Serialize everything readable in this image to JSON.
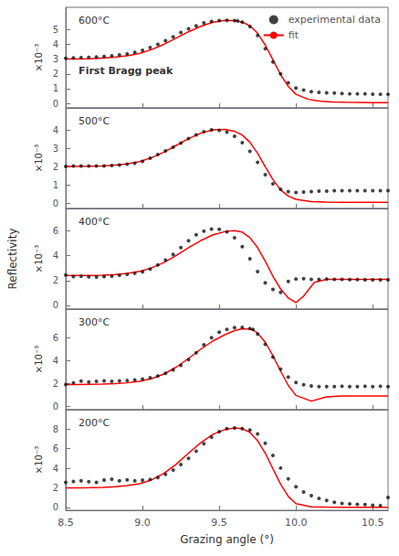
{
  "chart_data": [
    {
      "type": "scatter",
      "annotations": [
        "600°C",
        "×10⁻³",
        "First Bragg peak"
      ],
      "legend": "upper right",
      "grid": false,
      "tick_labels": "y",
      "xlim": [
        8.5,
        10.6
      ],
      "xticks": [
        8.5,
        {
          "value": 9.0,
          "label": "9.0"
        },
        9.5,
        {
          "value": 10.0,
          "label": "10.0"
        },
        10.5
      ],
      "ylim": [
        -0.3,
        6.5
      ],
      "yticks": [
        0,
        1,
        2,
        3,
        4,
        5
      ],
      "series": [
        {
          "name": "experimental data",
          "type": "scatter",
          "marker": "circle",
          "color": "#111111",
          "x": [
            8.5,
            8.55,
            8.6,
            8.65,
            8.7,
            8.75,
            8.8,
            8.85,
            8.9,
            8.95,
            9.0,
            9.05,
            9.1,
            9.15,
            9.2,
            9.25,
            9.3,
            9.35,
            9.4,
            9.45,
            9.5,
            9.55,
            9.6,
            9.62,
            9.65,
            9.7,
            9.75,
            9.8,
            9.85,
            9.9,
            9.95,
            10.0,
            10.05,
            10.1,
            10.15,
            10.2,
            10.25,
            10.3,
            10.35,
            10.4,
            10.45,
            10.5,
            10.55,
            10.6
          ],
          "values": [
            3.05,
            3.08,
            3.1,
            3.12,
            3.15,
            3.18,
            3.22,
            3.28,
            3.35,
            3.45,
            3.6,
            3.78,
            4.0,
            4.25,
            4.5,
            4.8,
            5.05,
            5.25,
            5.45,
            5.55,
            5.6,
            5.62,
            5.6,
            5.58,
            5.5,
            5.2,
            4.6,
            3.7,
            2.8,
            2.0,
            1.4,
            1.05,
            0.9,
            0.8,
            0.75,
            0.72,
            0.7,
            0.68,
            0.65,
            0.65,
            0.65,
            0.63,
            0.62,
            0.62
          ]
        },
        {
          "name": "fit",
          "type": "line",
          "line_style": "solid",
          "color": "#ff0000",
          "x": [
            8.5,
            8.58,
            8.66,
            8.74,
            8.82,
            8.9,
            8.98,
            9.06,
            9.14,
            9.22,
            9.3,
            9.38,
            9.46,
            9.54,
            9.6,
            9.65,
            9.7,
            9.75,
            9.8,
            9.85,
            9.9,
            9.95,
            10.0,
            10.08,
            10.16,
            10.24,
            10.32,
            10.4,
            10.5,
            10.6
          ],
          "values": [
            3.0,
            3.01,
            3.03,
            3.07,
            3.13,
            3.22,
            3.38,
            3.65,
            4.0,
            4.42,
            4.85,
            5.22,
            5.5,
            5.62,
            5.6,
            5.5,
            5.25,
            4.75,
            3.95,
            2.95,
            1.95,
            1.15,
            0.62,
            0.28,
            0.15,
            0.1,
            0.08,
            0.07,
            0.06,
            0.06
          ]
        }
      ]
    },
    {
      "type": "scatter",
      "annotations": [
        "500°C",
        "×10⁻³"
      ],
      "grid": false,
      "tick_labels": "y",
      "xlim": [
        8.5,
        10.6
      ],
      "xticks": [
        8.5,
        {
          "value": 9.0,
          "label": "9.0"
        },
        9.5,
        {
          "value": 10.0,
          "label": "10.0"
        },
        10.5
      ],
      "ylim": [
        -0.3,
        5.2
      ],
      "yticks": [
        0,
        1,
        2,
        3,
        4
      ],
      "series": [
        {
          "name": "experimental data",
          "type": "scatter",
          "marker": "circle",
          "color": "#111111",
          "x": [
            8.5,
            8.55,
            8.6,
            8.65,
            8.7,
            8.75,
            8.8,
            8.85,
            8.9,
            8.95,
            9.0,
            9.05,
            9.1,
            9.15,
            9.2,
            9.25,
            9.3,
            9.35,
            9.4,
            9.45,
            9.5,
            9.55,
            9.6,
            9.65,
            9.7,
            9.75,
            9.8,
            9.85,
            9.9,
            9.95,
            10.0,
            10.05,
            10.1,
            10.15,
            10.2,
            10.25,
            10.3,
            10.35,
            10.4,
            10.45,
            10.5,
            10.55,
            10.6
          ],
          "values": [
            2.0,
            2.02,
            2.03,
            2.03,
            2.02,
            2.03,
            2.05,
            2.08,
            2.12,
            2.18,
            2.28,
            2.45,
            2.65,
            2.85,
            3.05,
            3.28,
            3.52,
            3.72,
            3.9,
            4.0,
            3.98,
            3.88,
            3.65,
            3.3,
            2.82,
            2.22,
            1.55,
            1.05,
            0.75,
            0.62,
            0.58,
            0.6,
            0.62,
            0.65,
            0.65,
            0.68,
            0.68,
            0.68,
            0.68,
            0.68,
            0.68,
            0.68,
            0.68
          ]
        },
        {
          "name": "fit",
          "type": "line",
          "line_style": "solid",
          "color": "#ff0000",
          "x": [
            8.5,
            8.58,
            8.66,
            8.74,
            8.82,
            8.9,
            8.98,
            9.06,
            9.14,
            9.22,
            9.3,
            9.38,
            9.46,
            9.54,
            9.6,
            9.65,
            9.7,
            9.75,
            9.8,
            9.85,
            9.9,
            9.95,
            10.0,
            10.1,
            10.2,
            10.3,
            10.4,
            10.5,
            10.6
          ],
          "values": [
            2.0,
            2.0,
            2.01,
            2.03,
            2.07,
            2.14,
            2.26,
            2.48,
            2.78,
            3.15,
            3.52,
            3.82,
            4.0,
            4.02,
            3.92,
            3.72,
            3.32,
            2.72,
            1.98,
            1.28,
            0.72,
            0.38,
            0.2,
            0.08,
            0.05,
            0.04,
            0.04,
            0.04,
            0.04
          ]
        }
      ]
    },
    {
      "type": "scatter",
      "annotations": [
        "400°C",
        "×10⁻³"
      ],
      "ylabel": "Reflectivity",
      "grid": false,
      "tick_labels": "y",
      "xlim": [
        8.5,
        10.6
      ],
      "xticks": [
        8.5,
        {
          "value": 9.0,
          "label": "9.0"
        },
        9.5,
        {
          "value": 10.0,
          "label": "10.0"
        },
        10.5
      ],
      "ylim": [
        -0.3,
        7.8
      ],
      "yticks": [
        0,
        2,
        4,
        6
      ],
      "series": [
        {
          "name": "experimental data",
          "type": "scatter",
          "marker": "circle",
          "color": "#111111",
          "x": [
            8.5,
            8.55,
            8.6,
            8.65,
            8.7,
            8.75,
            8.8,
            8.85,
            8.9,
            8.95,
            9.0,
            9.05,
            9.1,
            9.15,
            9.2,
            9.25,
            9.3,
            9.35,
            9.4,
            9.45,
            9.5,
            9.55,
            9.6,
            9.65,
            9.7,
            9.75,
            9.8,
            9.85,
            9.9,
            9.95,
            10.0,
            10.05,
            10.1,
            10.15,
            10.2,
            10.25,
            10.3,
            10.35,
            10.4,
            10.45,
            10.5,
            10.55,
            10.6
          ],
          "values": [
            2.45,
            2.32,
            2.35,
            2.3,
            2.28,
            2.32,
            2.35,
            2.42,
            2.5,
            2.58,
            2.7,
            2.92,
            3.25,
            3.65,
            4.1,
            4.65,
            5.2,
            5.68,
            5.98,
            6.15,
            6.12,
            5.92,
            5.45,
            4.72,
            3.75,
            2.72,
            1.82,
            1.28,
            1.05,
            1.92,
            2.12,
            2.15,
            2.1,
            2.1,
            2.12,
            2.1,
            2.1,
            2.08,
            2.08,
            2.05,
            2.05,
            2.05,
            2.05
          ]
        },
        {
          "name": "fit",
          "type": "line",
          "line_style": "solid",
          "color": "#ff0000",
          "x": [
            8.5,
            8.58,
            8.66,
            8.74,
            8.82,
            8.9,
            8.98,
            9.06,
            9.14,
            9.22,
            9.3,
            9.38,
            9.46,
            9.54,
            9.6,
            9.65,
            9.7,
            9.75,
            9.8,
            9.85,
            9.9,
            9.95,
            10.0,
            10.05,
            10.12,
            10.2,
            10.3,
            10.4,
            10.5,
            10.6
          ],
          "values": [
            2.4,
            2.4,
            2.41,
            2.43,
            2.48,
            2.57,
            2.73,
            3.02,
            3.45,
            4.02,
            4.65,
            5.22,
            5.68,
            5.95,
            6.02,
            5.9,
            5.45,
            4.65,
            3.55,
            2.35,
            1.32,
            0.6,
            0.22,
            0.75,
            1.85,
            2.1,
            2.1,
            2.1,
            2.1,
            2.1
          ]
        }
      ]
    },
    {
      "type": "scatter",
      "annotations": [
        "300°C",
        "×10⁻³"
      ],
      "grid": false,
      "tick_labels": "y",
      "xlim": [
        8.5,
        10.6
      ],
      "xticks": [
        8.5,
        {
          "value": 9.0,
          "label": "9.0"
        },
        9.5,
        {
          "value": 10.0,
          "label": "10.0"
        },
        10.5
      ],
      "ylim": [
        -0.3,
        8.5
      ],
      "yticks": [
        0,
        2,
        4,
        6
      ],
      "series": [
        {
          "name": "experimental data",
          "type": "scatter",
          "marker": "circle",
          "color": "#111111",
          "x": [
            8.5,
            8.55,
            8.6,
            8.65,
            8.7,
            8.75,
            8.8,
            8.85,
            8.9,
            8.95,
            9.0,
            9.05,
            9.1,
            9.15,
            9.2,
            9.25,
            9.3,
            9.35,
            9.4,
            9.45,
            9.5,
            9.55,
            9.6,
            9.65,
            9.7,
            9.72,
            9.75,
            9.8,
            9.85,
            9.9,
            9.95,
            10.0,
            10.05,
            10.1,
            10.15,
            10.2,
            10.25,
            10.3,
            10.35,
            10.4,
            10.45,
            10.5,
            10.55,
            10.6
          ],
          "values": [
            1.9,
            2.05,
            2.2,
            2.12,
            2.18,
            2.22,
            2.18,
            2.22,
            2.25,
            2.3,
            2.38,
            2.5,
            2.65,
            2.88,
            3.18,
            3.58,
            4.08,
            4.68,
            5.38,
            6.0,
            6.48,
            6.72,
            6.88,
            6.9,
            6.8,
            6.72,
            6.32,
            5.42,
            4.3,
            3.25,
            2.55,
            2.08,
            1.88,
            1.78,
            1.72,
            1.72,
            1.72,
            1.75,
            1.72,
            1.72,
            1.75,
            1.72,
            1.75,
            1.72
          ]
        },
        {
          "name": "fit",
          "type": "line",
          "line_style": "solid",
          "color": "#ff0000",
          "x": [
            8.5,
            8.58,
            8.66,
            8.74,
            8.82,
            8.9,
            8.98,
            9.06,
            9.14,
            9.22,
            9.3,
            9.38,
            9.46,
            9.54,
            9.6,
            9.65,
            9.7,
            9.72,
            9.75,
            9.8,
            9.85,
            9.9,
            9.95,
            10.0,
            10.1,
            10.2,
            10.3,
            10.4,
            10.5,
            10.6
          ],
          "values": [
            1.9,
            1.9,
            1.92,
            1.94,
            1.98,
            2.05,
            2.18,
            2.42,
            2.82,
            3.42,
            4.18,
            5.0,
            5.72,
            6.28,
            6.62,
            6.78,
            6.75,
            6.68,
            6.4,
            5.6,
            4.42,
            3.08,
            1.82,
            0.95,
            0.45,
            0.82,
            0.9,
            0.9,
            0.9,
            0.9
          ]
        }
      ]
    },
    {
      "type": "scatter",
      "annotations": [
        "200°C",
        "×10⁻³"
      ],
      "xlabel": "Grazing angle (°)",
      "grid": false,
      "xlim": [
        8.5,
        10.6
      ],
      "xticks": [
        8.5,
        {
          "value": 9.0,
          "label": "9.0"
        },
        9.5,
        {
          "value": 10.0,
          "label": "10.0"
        },
        10.5
      ],
      "ylim": [
        -0.3,
        10.0
      ],
      "yticks": [
        0,
        2,
        4,
        6,
        8
      ],
      "series": [
        {
          "name": "experimental data",
          "type": "scatter",
          "marker": "circle",
          "color": "#111111",
          "x": [
            8.5,
            8.55,
            8.6,
            8.65,
            8.7,
            8.75,
            8.8,
            8.85,
            8.9,
            8.95,
            9.0,
            9.05,
            9.1,
            9.15,
            9.2,
            9.25,
            9.3,
            9.35,
            9.4,
            9.45,
            9.5,
            9.55,
            9.6,
            9.65,
            9.7,
            9.75,
            9.8,
            9.85,
            9.9,
            9.95,
            10.0,
            10.05,
            10.1,
            10.15,
            10.2,
            10.25,
            10.3,
            10.35,
            10.4,
            10.45,
            10.5,
            10.55,
            10.6
          ],
          "values": [
            2.55,
            2.65,
            2.72,
            2.62,
            2.55,
            2.8,
            2.88,
            2.72,
            2.82,
            2.72,
            2.78,
            2.85,
            3.05,
            3.38,
            3.82,
            4.38,
            5.02,
            5.75,
            6.52,
            7.18,
            7.75,
            8.05,
            8.12,
            8.05,
            7.92,
            7.52,
            6.55,
            5.32,
            4.02,
            2.92,
            2.12,
            1.58,
            1.2,
            0.92,
            0.7,
            0.52,
            0.4,
            0.35,
            0.3,
            0.28,
            0.22,
            0.18,
            1.02
          ]
        },
        {
          "name": "fit",
          "type": "line",
          "line_style": "solid",
          "color": "#ff0000",
          "x": [
            8.5,
            8.58,
            8.66,
            8.74,
            8.82,
            8.9,
            8.98,
            9.06,
            9.14,
            9.22,
            9.3,
            9.38,
            9.46,
            9.54,
            9.6,
            9.65,
            9.7,
            9.75,
            9.8,
            9.85,
            9.9,
            9.95,
            10.0,
            10.1,
            10.2,
            10.3,
            10.4,
            10.5,
            10.6
          ],
          "values": [
            2.0,
            2.0,
            2.02,
            2.05,
            2.1,
            2.22,
            2.42,
            2.82,
            3.48,
            4.42,
            5.55,
            6.62,
            7.48,
            7.98,
            8.12,
            8.05,
            7.68,
            6.82,
            5.55,
            3.95,
            2.38,
            1.12,
            0.38,
            0.06,
            0.02,
            0.01,
            0.01,
            0.01,
            0.01
          ]
        }
      ]
    }
  ]
}
